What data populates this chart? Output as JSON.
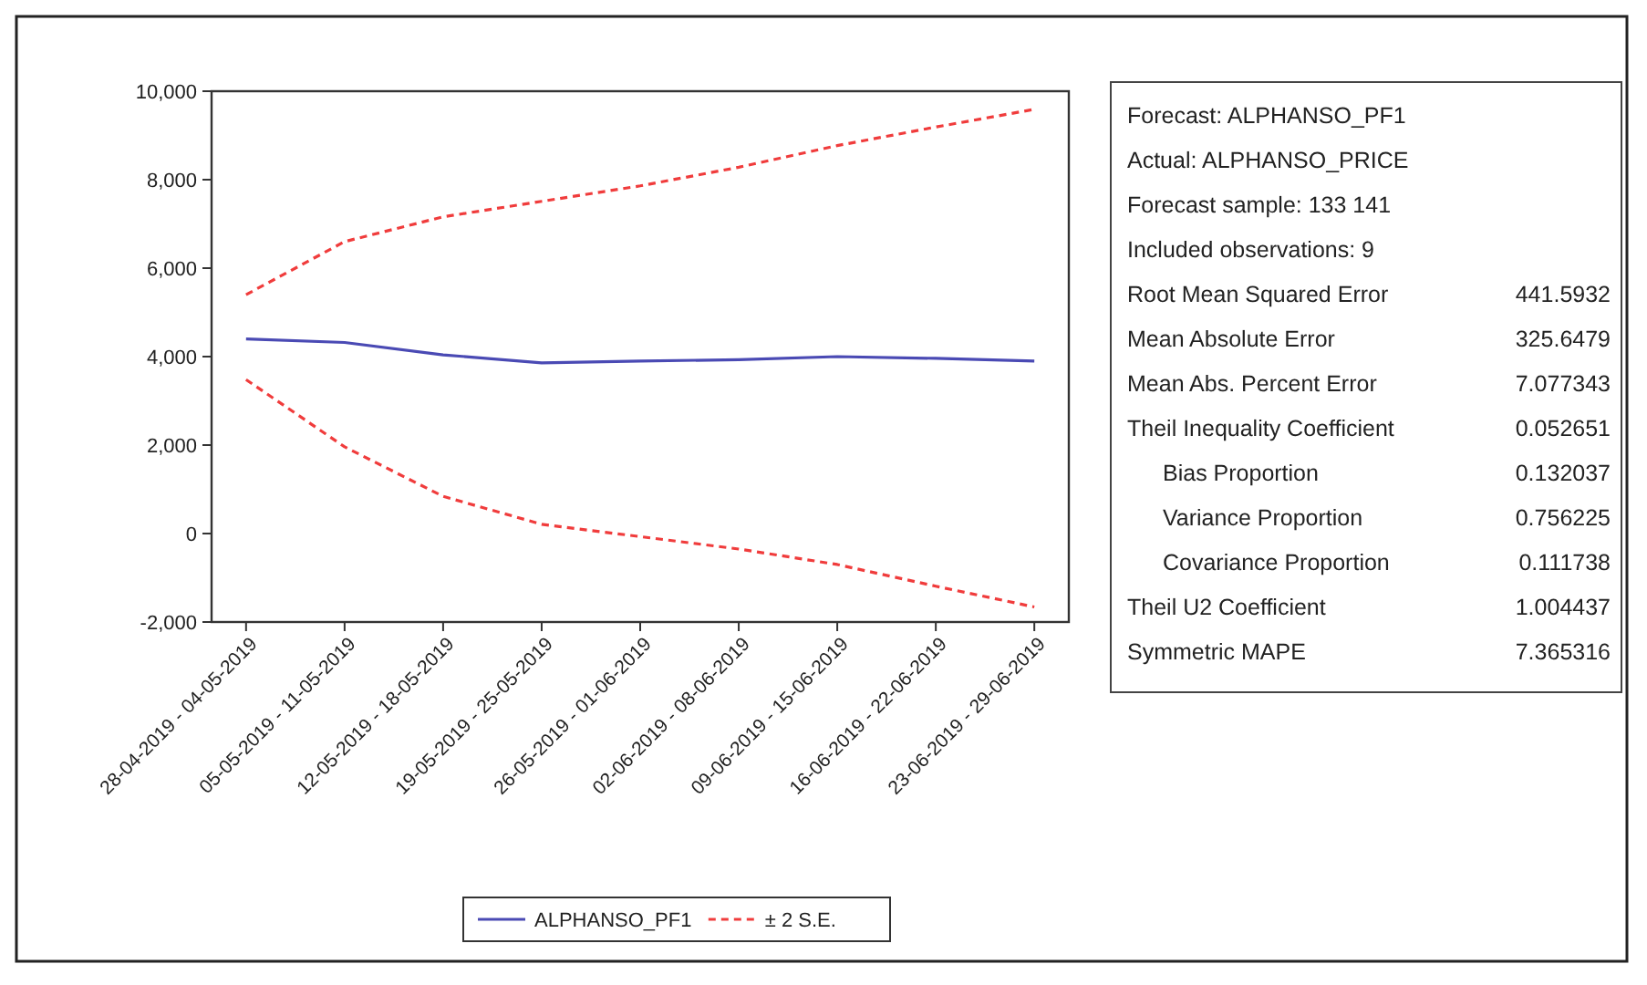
{
  "chart_data": {
    "type": "line",
    "categories": [
      "28-04-2019 - 04-05-2019",
      "05-05-2019 - 11-05-2019",
      "12-05-2019 - 18-05-2019",
      "19-05-2019 - 25-05-2019",
      "26-05-2019 - 01-06-2019",
      "02-06-2019 - 08-06-2019",
      "09-06-2019 - 15-06-2019",
      "16-06-2019 - 22-06-2019",
      "23-06-2019 - 29-06-2019"
    ],
    "series": [
      {
        "name": "ALPHANSO_PF1",
        "color": "#4a4ab4",
        "line_style": "solid",
        "values": [
          4400,
          4320,
          4040,
          3860,
          3900,
          3930,
          4000,
          3960,
          3900
        ]
      },
      {
        "name": "± 2 S.E.",
        "color": "#f03c3c",
        "line_style": "dashed",
        "values": [
          5400,
          6600,
          7160,
          7510,
          7860,
          8280,
          8770,
          9190,
          9590
        ]
      },
      {
        "color": "#f03c3c",
        "line_style": "dashed",
        "values": [
          3480,
          1960,
          840,
          210,
          -70,
          -350,
          -700,
          -1190,
          -1660
        ]
      }
    ],
    "ylim": [
      -2000,
      10000
    ],
    "yticks": [
      {
        "value": -2000,
        "label": "-2,000"
      },
      0,
      {
        "value": 2000,
        "label": "2,000"
      },
      {
        "value": 4000,
        "label": "4,000"
      },
      {
        "value": 6000,
        "label": "6,000"
      },
      {
        "value": 8000,
        "label": "8,000"
      },
      {
        "value": 10000,
        "label": "10,000"
      }
    ],
    "grid": false,
    "legend": "bottom",
    "marker": "none",
    "annotations": [
      "Forecast: ALPHANSO_PF1",
      "Actual: ALPHANSO_PRICE",
      "Forecast sample: 133 141",
      "Included observations: 9",
      "Root Mean Squared Error\t441.5932",
      "Mean Absolute Error\t325.6479",
      "Mean Abs. Percent Error\t7.077343",
      "Theil Inequality Coefficient\t0.052651",
      "   Bias Proportion\t0.132037",
      "   Variance Proportion\t0.756225",
      "   Covariance Proportion\t0.111738",
      "Theil U2 Coefficient\t1.004437",
      "Symmetric MAPE\t7.365316"
    ]
  }
}
